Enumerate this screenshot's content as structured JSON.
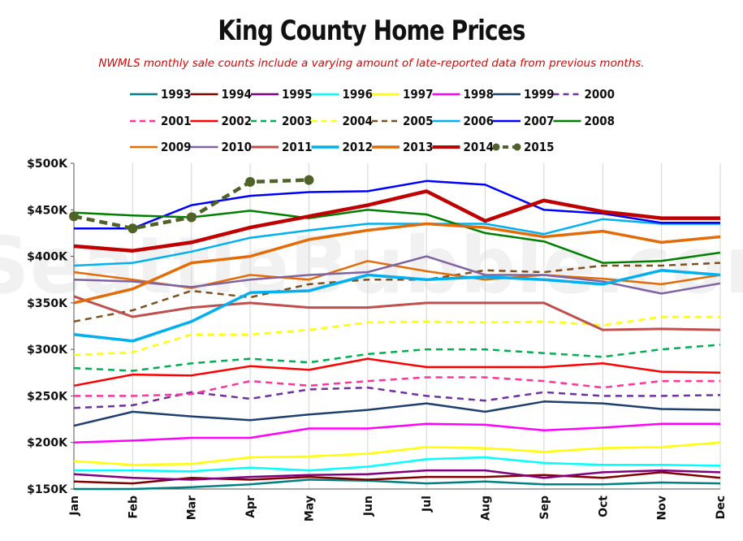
{
  "chart_data": {
    "type": "line",
    "title": "King County Home Prices",
    "subtitle": "NWMLS monthly sale counts include a varying amount of late-reported  data from previous months.",
    "watermark": "SeattleBubble.com",
    "categories": [
      "Jan",
      "Feb",
      "Mar",
      "Apr",
      "May",
      "Jun",
      "Jul",
      "Aug",
      "Sep",
      "Oct",
      "Nov",
      "Dec"
    ],
    "ylim": [
      150000,
      500000
    ],
    "yticks": [
      150000,
      200000,
      250000,
      300000,
      350000,
      400000,
      450000,
      500000
    ],
    "ytick_labels": [
      "$150K",
      "$200K",
      "$250K",
      "$300K",
      "$350K",
      "$400K",
      "$450K",
      "$500K"
    ],
    "grid": "vertical",
    "legend_position": "top",
    "series": [
      {
        "name": "1993",
        "color": "#008080",
        "dash": "solid",
        "width": 2.5,
        "values": [
          150000,
          150000,
          152000,
          155000,
          160000,
          159000,
          156000,
          158000,
          155000,
          155000,
          157000,
          156000
        ]
      },
      {
        "name": "1994",
        "color": "#800000",
        "dash": "solid",
        "width": 2.5,
        "values": [
          158000,
          156000,
          162000,
          160000,
          163000,
          160000,
          163000,
          163000,
          165000,
          162000,
          168000,
          162000
        ]
      },
      {
        "name": "1995",
        "color": "#800080",
        "dash": "solid",
        "width": 2.5,
        "values": [
          166000,
          162000,
          160000,
          163000,
          165000,
          166000,
          170000,
          170000,
          162000,
          168000,
          170000,
          168000
        ]
      },
      {
        "name": "1996",
        "color": "#00ffff",
        "dash": "solid",
        "width": 2.5,
        "values": [
          170000,
          170000,
          169000,
          173000,
          170000,
          174000,
          182000,
          184000,
          178000,
          176000,
          176000,
          175000
        ]
      },
      {
        "name": "1997",
        "color": "#ffff00",
        "dash": "solid",
        "width": 2.5,
        "values": [
          180000,
          176000,
          177000,
          184000,
          185000,
          188000,
          195000,
          194000,
          190000,
          194000,
          195000,
          200000
        ]
      },
      {
        "name": "1998",
        "color": "#ff00ff",
        "dash": "solid",
        "width": 2.5,
        "values": [
          200000,
          202000,
          205000,
          205000,
          215000,
          215000,
          220000,
          219000,
          213000,
          216000,
          220000,
          220000
        ]
      },
      {
        "name": "1999",
        "color": "#1f3f6f",
        "dash": "solid",
        "width": 2.5,
        "values": [
          218000,
          233000,
          228000,
          224000,
          230000,
          235000,
          242000,
          233000,
          244000,
          242000,
          236000,
          235000
        ]
      },
      {
        "name": "2000",
        "color": "#7030a0",
        "dash": "dashed",
        "width": 2.5,
        "values": [
          237000,
          240000,
          254000,
          247000,
          257000,
          259000,
          250000,
          245000,
          254000,
          250000,
          250000,
          251000
        ]
      },
      {
        "name": "2001",
        "color": "#ff3399",
        "dash": "dashed",
        "width": 2.5,
        "values": [
          250000,
          250000,
          252000,
          266000,
          261000,
          266000,
          270000,
          270000,
          266000,
          259000,
          266000,
          266000
        ]
      },
      {
        "name": "2002",
        "color": "#ff0000",
        "dash": "solid",
        "width": 2.5,
        "values": [
          261000,
          273000,
          272000,
          282000,
          278000,
          290000,
          281000,
          281000,
          281000,
          285000,
          276000,
          275000
        ]
      },
      {
        "name": "2003",
        "color": "#00b050",
        "dash": "dashed",
        "width": 2.5,
        "values": [
          280000,
          277000,
          285000,
          290000,
          286000,
          295000,
          300000,
          300000,
          296000,
          292000,
          300000,
          305000
        ]
      },
      {
        "name": "2004",
        "color": "#ffff00",
        "dash": "dashed",
        "width": 2.5,
        "values": [
          294000,
          297000,
          316000,
          316000,
          321000,
          329000,
          330000,
          329000,
          330000,
          326000,
          335000,
          335000
        ]
      },
      {
        "name": "2005",
        "color": "#7f4f1f",
        "dash": "dashed",
        "width": 2.5,
        "values": [
          330000,
          342000,
          363000,
          356000,
          370000,
          375000,
          375000,
          385000,
          383000,
          390000,
          390000,
          393000
        ]
      },
      {
        "name": "2006",
        "color": "#00b0f0",
        "dash": "solid",
        "width": 2.5,
        "values": [
          390000,
          393000,
          405000,
          420000,
          428000,
          435000,
          435000,
          435000,
          424000,
          440000,
          435000,
          435000
        ]
      },
      {
        "name": "2007",
        "color": "#0000ff",
        "dash": "solid",
        "width": 2.5,
        "values": [
          430000,
          430000,
          455000,
          465000,
          469000,
          470000,
          481000,
          477000,
          450000,
          446000,
          436000,
          436000
        ]
      },
      {
        "name": "2008",
        "color": "#008000",
        "dash": "solid",
        "width": 2.5,
        "values": [
          447000,
          444000,
          442000,
          449000,
          441000,
          450000,
          445000,
          425000,
          416000,
          393000,
          395000,
          404000
        ]
      },
      {
        "name": "2009",
        "color": "#e36c09",
        "dash": "solid",
        "width": 2.5,
        "values": [
          383000,
          375000,
          366000,
          380000,
          375000,
          395000,
          384000,
          375000,
          380000,
          376000,
          370000,
          380000
        ]
      },
      {
        "name": "2010",
        "color": "#8064a2",
        "dash": "solid",
        "width": 2.5,
        "values": [
          375000,
          373000,
          367000,
          375000,
          380000,
          383000,
          400000,
          380000,
          380000,
          373000,
          360000,
          371000
        ]
      },
      {
        "name": "2011",
        "color": "#c0504d",
        "dash": "solid",
        "width": 3,
        "values": [
          357000,
          335000,
          345000,
          350000,
          345000,
          345000,
          350000,
          350000,
          350000,
          321000,
          322000,
          321000
        ]
      },
      {
        "name": "2012",
        "color": "#00b0f0",
        "dash": "solid",
        "width": 3.5,
        "values": [
          316000,
          309000,
          330000,
          361000,
          363000,
          380000,
          375000,
          378000,
          375000,
          370000,
          385000,
          380000
        ]
      },
      {
        "name": "2013",
        "color": "#e36c09",
        "dash": "solid",
        "width": 3.5,
        "values": [
          350000,
          365000,
          393000,
          400000,
          418000,
          428000,
          435000,
          431000,
          421000,
          427000,
          415000,
          421000
        ]
      },
      {
        "name": "2014",
        "color": "#c00000",
        "dash": "solid",
        "width": 4.5,
        "values": [
          411000,
          406000,
          415000,
          431000,
          443000,
          455000,
          470000,
          438000,
          460000,
          448000,
          441000,
          441000
        ]
      },
      {
        "name": "2015",
        "color": "#4f6228",
        "dash": "dashed",
        "markers": true,
        "width": 4.5,
        "values": [
          443000,
          430000,
          442000,
          480000,
          482000,
          null,
          null,
          null,
          null,
          null,
          null,
          null
        ]
      }
    ]
  }
}
